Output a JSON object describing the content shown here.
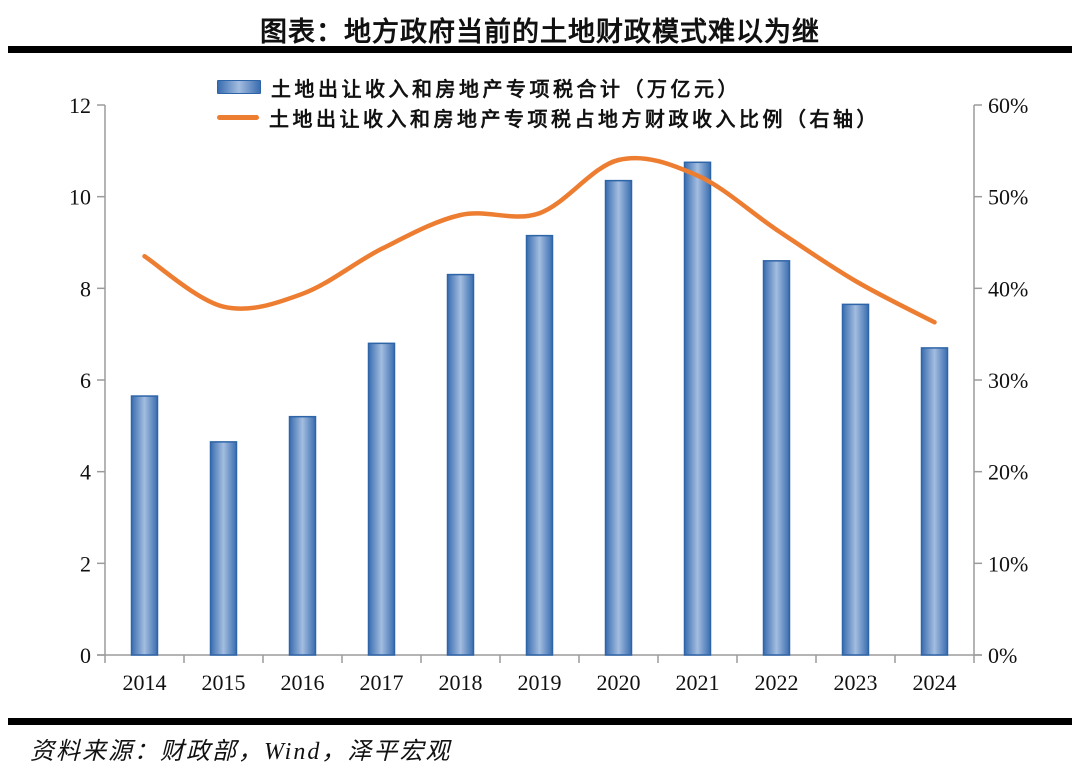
{
  "title": "图表：地方政府当前的土地财政模式难以为继",
  "source": "资料来源：财政部，Wind，泽平宏观",
  "legend": {
    "items": [
      {
        "label": "土地出让收入和房地产专项税合计（万亿元）",
        "type": "bar"
      },
      {
        "label": "土地出让收入和房地产专项税占地方财政收入比例（右轴）",
        "type": "line"
      }
    ]
  },
  "chart_data": {
    "type": "bar+line",
    "categories": [
      "2014",
      "2015",
      "2016",
      "2017",
      "2018",
      "2019",
      "2020",
      "2021",
      "2022",
      "2023",
      "2024"
    ],
    "series": [
      {
        "name": "土地出让收入和房地产专项税合计（万亿元）",
        "type": "bar",
        "axis": "left",
        "values": [
          5.65,
          4.65,
          5.2,
          6.8,
          8.3,
          9.15,
          10.35,
          10.75,
          8.6,
          7.65,
          6.7
        ]
      },
      {
        "name": "土地出让收入和房地产专项税占地方财政收入比例（右轴）",
        "type": "line",
        "axis": "right",
        "values": [
          43.5,
          38.0,
          39.4,
          44.3,
          48.0,
          48.2,
          54.0,
          52.3,
          46.4,
          40.8,
          36.3
        ]
      }
    ],
    "left_axis": {
      "min": 0,
      "max": 12,
      "step": 2,
      "tick_labels": [
        "0",
        "2",
        "4",
        "6",
        "8",
        "10",
        "12"
      ]
    },
    "right_axis": {
      "min": 0,
      "max": 60,
      "step": 10,
      "tick_labels": [
        "0%",
        "10%",
        "20%",
        "30%",
        "40%",
        "50%",
        "60%"
      ]
    },
    "grid": false,
    "legend_position": "top",
    "colors": {
      "bar_edge": "#3A6DB0",
      "bar_center": "#A3BDDF",
      "bar_border": "#2E64A8",
      "line": "#ED7D31",
      "axis": "#9B9B9B",
      "text": "#111111"
    }
  }
}
